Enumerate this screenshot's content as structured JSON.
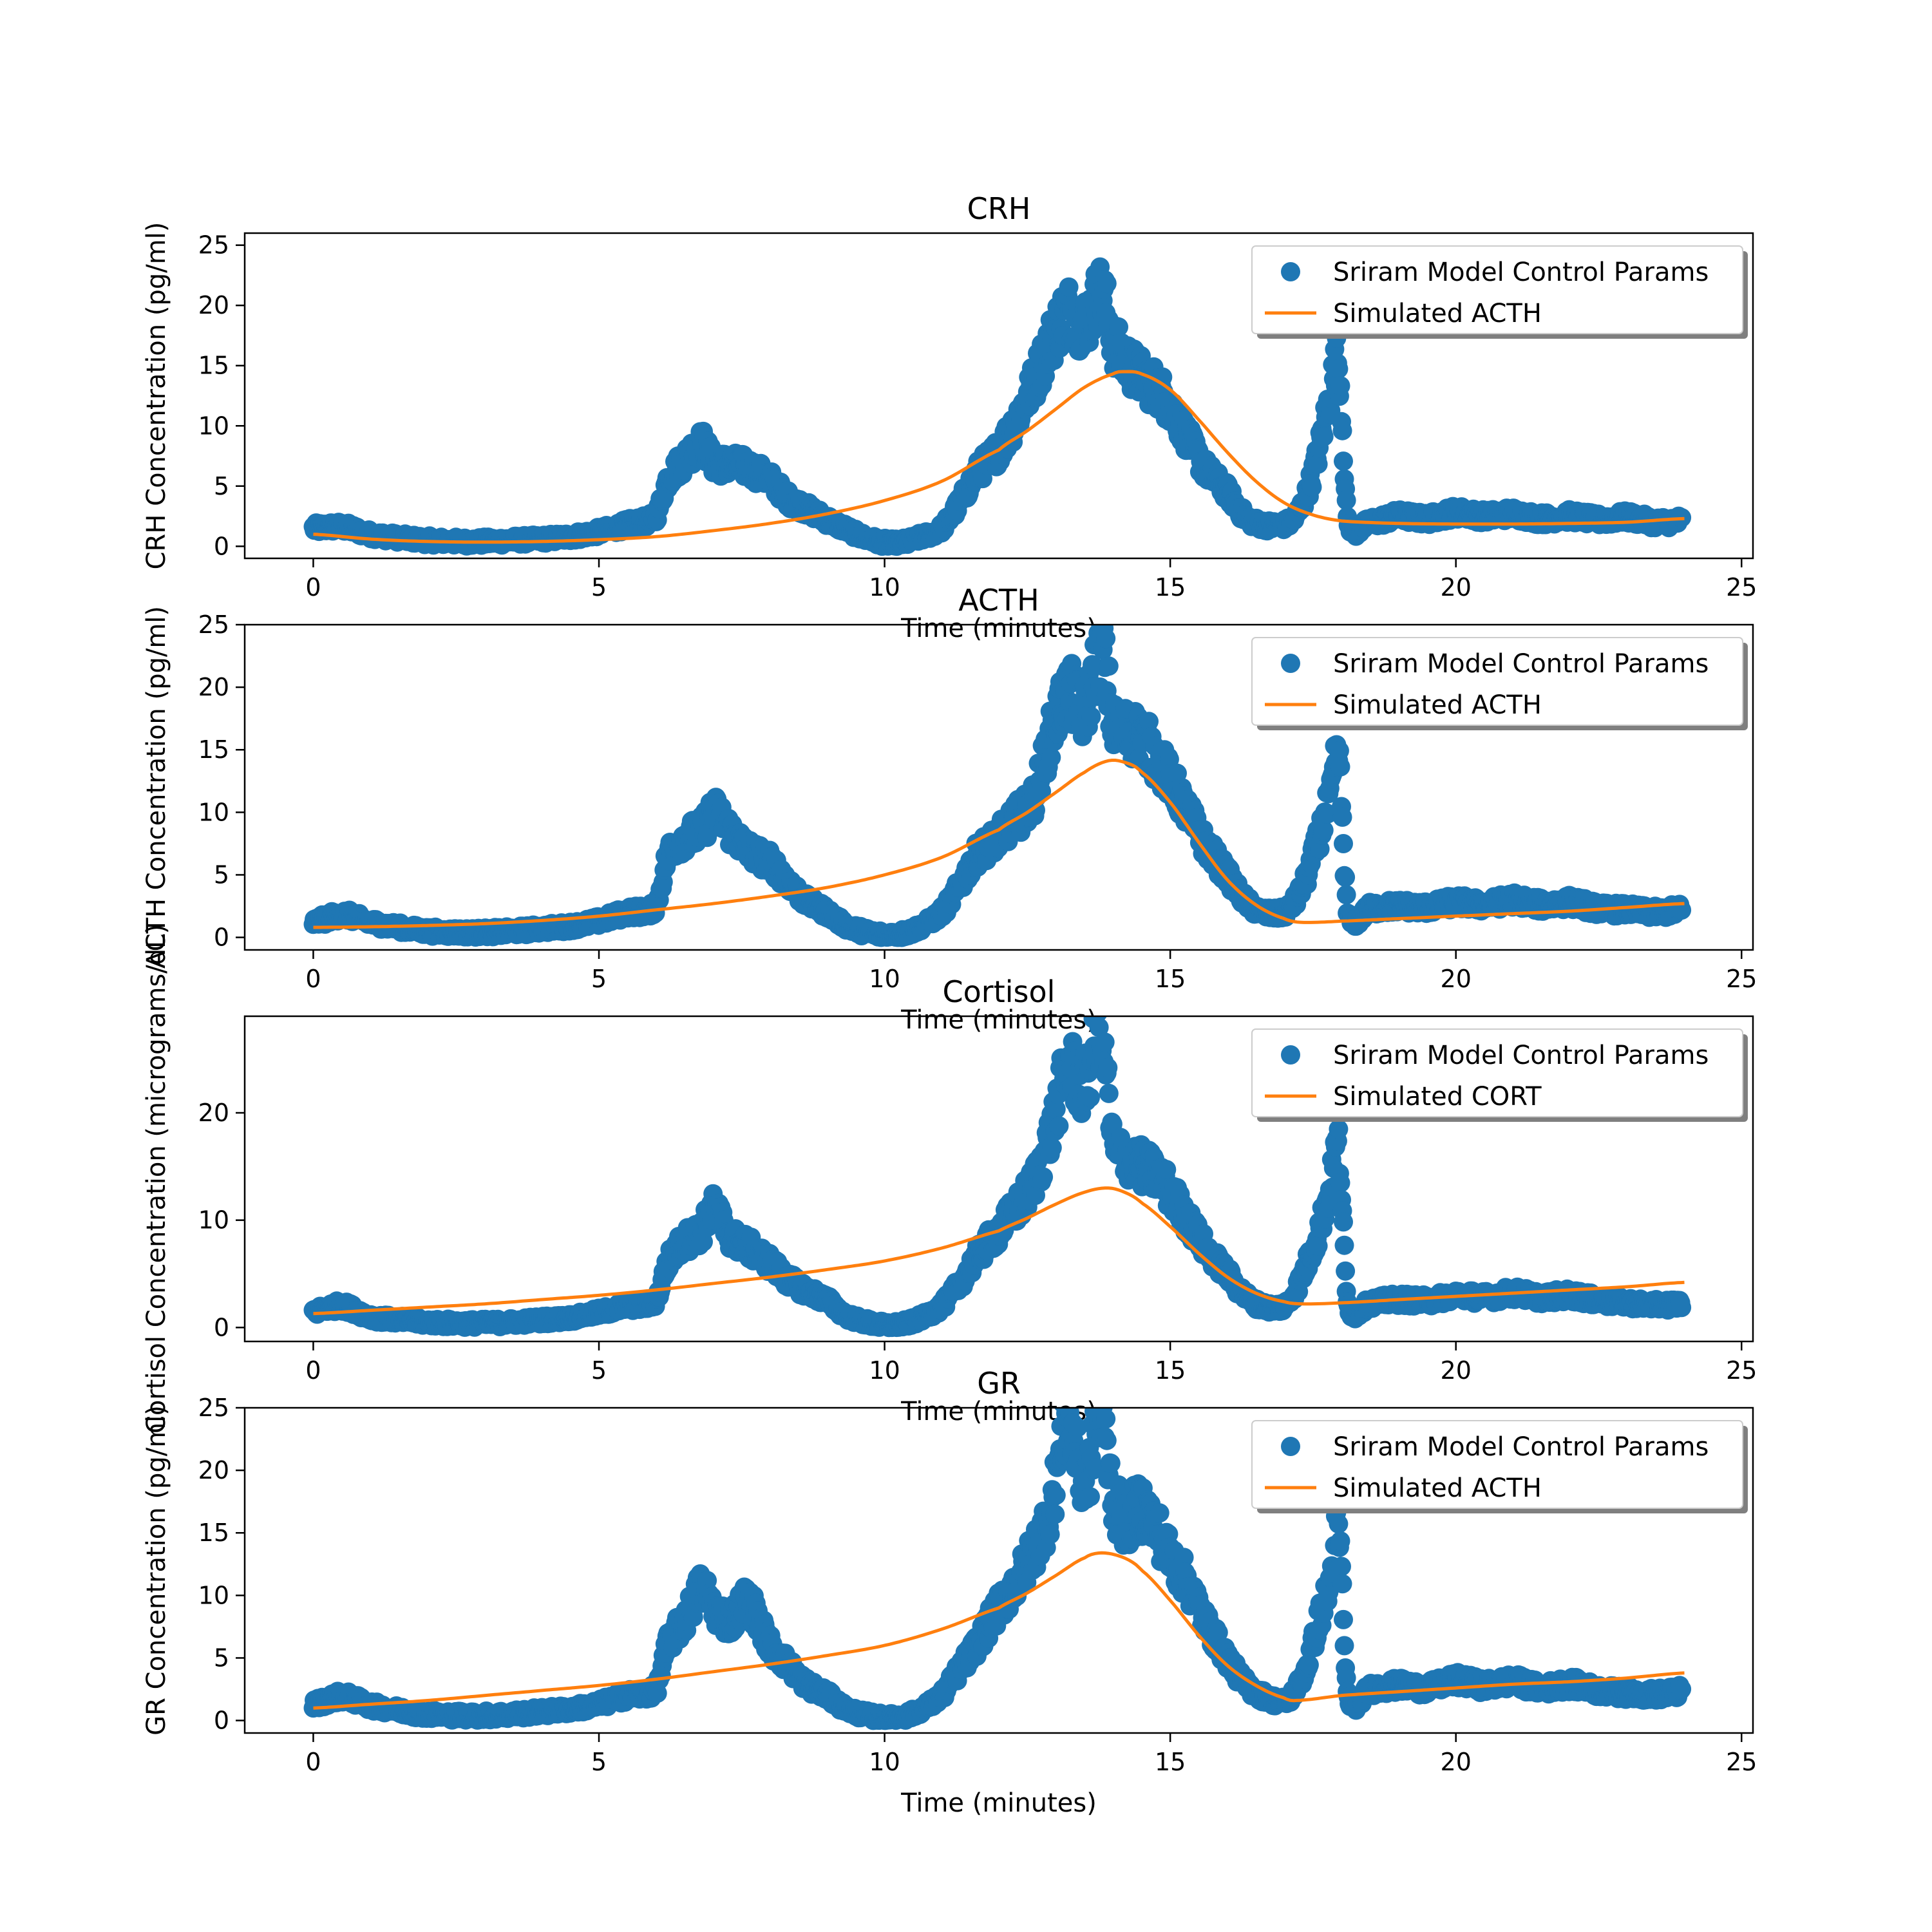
{
  "figure": {
    "colors": {
      "scatter": "#1f77b4",
      "line": "#ff7f0e",
      "axis": "#000000",
      "legend_border": "#cccccc",
      "legend_shadow": "#7f7f7f"
    }
  },
  "chart_data": [
    {
      "type": "scatter",
      "title": "CRH",
      "xlabel": "Time (minutes)",
      "ylabel": "CRH Concentration (pg/ml)",
      "xlim": [
        -1.2,
        25.2
      ],
      "ylim": [
        -1.0,
        26.0
      ],
      "xticks": [
        "0",
        "5",
        "10",
        "15",
        "20",
        "25"
      ],
      "xtick_values": [
        0,
        5,
        10,
        15,
        20,
        25
      ],
      "yticks": [
        "0",
        "5",
        "10",
        "15",
        "20",
        "25"
      ],
      "ytick_values": [
        0,
        5,
        10,
        15,
        20,
        25
      ],
      "grid": false,
      "legend": {
        "position": "upper right",
        "entries": [
          "Sriram Model Control Params",
          "Simulated ACTH"
        ]
      },
      "series": [
        {
          "name": "Sriram Model Control Params",
          "kind": "scatter",
          "color": "#1f77b4",
          "x": [
            0.0,
            0.5,
            1.0,
            1.5,
            2.0,
            2.5,
            3.0,
            3.5,
            4.0,
            4.5,
            5.0,
            5.5,
            6.0,
            6.2,
            6.5,
            6.8,
            7.0,
            7.3,
            7.6,
            8.0,
            8.3,
            8.6,
            9.0,
            9.3,
            9.6,
            10.0,
            10.3,
            10.6,
            11.0,
            11.3,
            11.6,
            12.0,
            12.3,
            12.6,
            12.9,
            13.2,
            13.5,
            13.8,
            14.0,
            14.2,
            14.5,
            14.8,
            15.0,
            15.3,
            15.6,
            16.0,
            16.3,
            16.6,
            17.0,
            17.2,
            17.4,
            17.6,
            17.8,
            17.95,
            18.1,
            18.5,
            19.0,
            19.5,
            20.0,
            20.5,
            21.0,
            21.5,
            22.0,
            22.5,
            23.0,
            23.5,
            23.95
          ],
          "y": [
            1.5,
            1.6,
            1.0,
            0.7,
            0.5,
            0.4,
            0.4,
            0.5,
            0.6,
            0.8,
            1.2,
            1.8,
            2.5,
            5.5,
            7.2,
            8.5,
            7.0,
            6.8,
            6.5,
            5.5,
            4.0,
            3.2,
            2.2,
            1.5,
            0.8,
            0.3,
            0.3,
            0.7,
            1.5,
            3.5,
            6.0,
            8.0,
            10.5,
            13.5,
            17.0,
            19.5,
            18.5,
            21.0,
            17.0,
            15.5,
            14.0,
            13.0,
            11.5,
            9.0,
            6.5,
            4.5,
            2.5,
            1.8,
            1.8,
            2.5,
            4.5,
            8.0,
            12.5,
            15.0,
            2.2,
            2.0,
            2.5,
            2.3,
            2.8,
            2.5,
            2.7,
            2.3,
            2.5,
            2.2,
            2.4,
            2.0,
            2.1
          ]
        },
        {
          "name": "Simulated ACTH",
          "kind": "line",
          "color": "#ff7f0e",
          "x": [
            0,
            1,
            2,
            3,
            4,
            5,
            6,
            7,
            8,
            9,
            10,
            11,
            12,
            12.5,
            13,
            13.5,
            14,
            14.2,
            14.5,
            15,
            15.5,
            16,
            16.5,
            17,
            17.5,
            18,
            19,
            20,
            21,
            22,
            23,
            24
          ],
          "y": [
            1.0,
            0.6,
            0.4,
            0.35,
            0.4,
            0.55,
            0.8,
            1.3,
            1.9,
            2.7,
            3.8,
            5.4,
            8.0,
            9.6,
            11.4,
            13.2,
            14.3,
            14.5,
            14.3,
            13.0,
            10.5,
            7.8,
            5.4,
            3.6,
            2.6,
            2.1,
            1.9,
            1.85,
            1.85,
            1.9,
            2.0,
            2.3
          ]
        }
      ]
    },
    {
      "type": "scatter",
      "title": "ACTH",
      "xlabel": "Time (minutes)",
      "ylabel": "ACTH Concentration (pg/ml)",
      "xlim": [
        -1.2,
        25.2
      ],
      "ylim": [
        -1.0,
        25.0
      ],
      "xticks": [
        "0",
        "5",
        "10",
        "15",
        "20",
        "25"
      ],
      "xtick_values": [
        0,
        5,
        10,
        15,
        20,
        25
      ],
      "yticks": [
        "0",
        "5",
        "10",
        "15",
        "20",
        "25"
      ],
      "ytick_values": [
        0,
        5,
        10,
        15,
        20,
        25
      ],
      "grid": false,
      "legend": {
        "position": "upper right",
        "entries": [
          "Sriram Model Control Params",
          "Simulated ACTH"
        ]
      },
      "series": [
        {
          "name": "Sriram Model Control Params",
          "kind": "scatter",
          "color": "#1f77b4",
          "x": [
            0.0,
            0.5,
            1.0,
            1.5,
            2.0,
            2.5,
            3.0,
            3.5,
            4.0,
            4.5,
            5.0,
            5.5,
            6.0,
            6.2,
            6.5,
            6.8,
            7.0,
            7.3,
            7.6,
            8.0,
            8.3,
            8.6,
            9.0,
            9.3,
            9.6,
            10.0,
            10.3,
            10.6,
            11.0,
            11.3,
            11.6,
            12.0,
            12.3,
            12.6,
            12.9,
            13.2,
            13.5,
            13.8,
            14.0,
            14.2,
            14.5,
            14.8,
            15.0,
            15.3,
            15.6,
            16.0,
            16.3,
            16.6,
            17.0,
            17.2,
            17.4,
            17.6,
            17.8,
            17.95,
            18.1,
            18.5,
            19.0,
            19.5,
            20.0,
            20.5,
            21.0,
            21.5,
            22.0,
            22.5,
            23.0,
            23.5,
            23.95
          ],
          "y": [
            1.2,
            1.8,
            1.2,
            0.8,
            0.5,
            0.4,
            0.4,
            0.5,
            0.7,
            0.9,
            1.3,
            2.0,
            2.5,
            6.5,
            8.0,
            8.5,
            10.0,
            8.5,
            7.0,
            6.0,
            4.5,
            3.0,
            2.0,
            1.0,
            0.5,
            0.2,
            0.3,
            0.8,
            2.0,
            4.0,
            6.5,
            8.0,
            9.5,
            11.0,
            16.0,
            19.5,
            18.0,
            23.0,
            17.0,
            16.5,
            16.0,
            14.0,
            12.5,
            10.0,
            7.5,
            5.0,
            3.0,
            2.0,
            2.0,
            3.0,
            5.0,
            8.0,
            11.0,
            14.0,
            2.0,
            2.3,
            2.5,
            2.4,
            2.8,
            2.6,
            3.0,
            2.6,
            2.8,
            2.3,
            2.2,
            2.0,
            2.2
          ]
        },
        {
          "name": "Simulated ACTH",
          "kind": "line",
          "color": "#ff7f0e",
          "x": [
            0,
            1,
            2,
            3,
            4,
            5,
            6,
            7,
            8,
            9,
            10,
            11,
            12,
            12.5,
            13,
            13.5,
            13.9,
            14.2,
            14.5,
            15,
            15.5,
            16,
            16.5,
            17,
            17.3,
            18,
            19,
            20,
            21,
            22,
            23,
            24
          ],
          "y": [
            0.8,
            0.85,
            0.95,
            1.1,
            1.35,
            1.7,
            2.2,
            2.7,
            3.3,
            4.0,
            5.0,
            6.4,
            8.6,
            10.0,
            11.6,
            13.2,
            14.1,
            14.0,
            13.2,
            10.8,
            7.6,
            4.6,
            2.6,
            1.5,
            1.2,
            1.3,
            1.5,
            1.7,
            1.9,
            2.1,
            2.4,
            2.7
          ]
        }
      ]
    },
    {
      "type": "scatter",
      "title": "Cortisol",
      "xlabel": "Time (minutes)",
      "ylabel": "Cortisol Concentration (micrograms/dL)",
      "xlim": [
        -1.2,
        25.2
      ],
      "ylim": [
        -1.3,
        29.0
      ],
      "xticks": [
        "0",
        "5",
        "10",
        "15",
        "20",
        "25"
      ],
      "xtick_values": [
        0,
        5,
        10,
        15,
        20,
        25
      ],
      "yticks": [
        "0",
        "10",
        "20"
      ],
      "ytick_values": [
        0,
        10,
        20
      ],
      "grid": false,
      "legend": {
        "position": "upper right",
        "entries": [
          "Sriram Model Control Params",
          "Simulated CORT"
        ]
      },
      "series": [
        {
          "name": "Sriram Model Control Params",
          "kind": "scatter",
          "color": "#1f77b4",
          "x": [
            0.0,
            0.5,
            1.0,
            1.5,
            2.0,
            2.5,
            3.0,
            3.5,
            4.0,
            4.5,
            5.0,
            5.5,
            6.0,
            6.2,
            6.5,
            6.8,
            7.0,
            7.3,
            7.6,
            8.0,
            8.3,
            8.6,
            9.0,
            9.3,
            9.6,
            10.0,
            10.3,
            10.6,
            11.0,
            11.3,
            11.6,
            12.0,
            12.3,
            12.6,
            12.9,
            13.2,
            13.5,
            13.8,
            14.0,
            14.2,
            14.5,
            14.8,
            15.0,
            15.3,
            15.6,
            16.0,
            16.3,
            16.6,
            17.0,
            17.2,
            17.4,
            17.6,
            17.8,
            17.95,
            18.1,
            18.5,
            19.0,
            19.5,
            20.0,
            20.5,
            21.0,
            21.5,
            22.0,
            22.5,
            23.0,
            23.5,
            23.95
          ],
          "y": [
            1.5,
            2.0,
            1.0,
            0.7,
            0.5,
            0.4,
            0.4,
            0.5,
            0.7,
            0.9,
            1.4,
            2.0,
            2.5,
            6.0,
            8.0,
            9.0,
            11.0,
            8.5,
            7.5,
            6.0,
            4.5,
            3.5,
            2.5,
            1.2,
            0.6,
            0.2,
            0.3,
            0.8,
            2.0,
            4.0,
            6.5,
            9.0,
            11.0,
            13.5,
            18.0,
            24.0,
            22.5,
            27.5,
            17.0,
            16.0,
            15.0,
            14.0,
            12.5,
            10.0,
            7.5,
            5.0,
            3.0,
            2.0,
            2.0,
            3.5,
            6.0,
            9.0,
            13.0,
            16.5,
            2.2,
            2.3,
            2.6,
            2.5,
            3.0,
            2.8,
            3.2,
            2.8,
            3.0,
            2.5,
            2.3,
            2.1,
            2.2
          ]
        },
        {
          "name": "Simulated CORT",
          "kind": "line",
          "color": "#ff7f0e",
          "x": [
            0,
            1,
            2,
            3,
            4,
            5,
            6,
            7,
            8,
            9,
            10,
            11,
            12,
            12.5,
            13,
            13.5,
            13.9,
            14.2,
            14.5,
            15,
            15.5,
            16,
            16.5,
            17,
            17.3,
            18,
            19,
            20,
            21,
            22,
            23,
            24
          ],
          "y": [
            1.3,
            1.6,
            1.9,
            2.2,
            2.6,
            3.0,
            3.5,
            4.1,
            4.7,
            5.4,
            6.2,
            7.4,
            9.0,
            10.2,
            11.5,
            12.6,
            13.0,
            12.6,
            11.6,
            9.4,
            6.9,
            4.7,
            3.2,
            2.4,
            2.2,
            2.3,
            2.6,
            2.9,
            3.2,
            3.5,
            3.8,
            4.2
          ]
        }
      ]
    },
    {
      "type": "scatter",
      "title": "GR",
      "xlabel": "Time (minutes)",
      "ylabel": "GR Concentration (pg/ml)",
      "xlim": [
        -1.2,
        25.2
      ],
      "ylim": [
        -1.0,
        25.0
      ],
      "xticks": [
        "0",
        "5",
        "10",
        "15",
        "20",
        "25"
      ],
      "xtick_values": [
        0,
        5,
        10,
        15,
        20,
        25
      ],
      "yticks": [
        "0",
        "5",
        "10",
        "15",
        "20",
        "25"
      ],
      "ytick_values": [
        0,
        5,
        10,
        15,
        20,
        25
      ],
      "grid": false,
      "legend": {
        "position": "upper right",
        "entries": [
          "Sriram Model Control Params",
          "Simulated ACTH"
        ]
      },
      "series": [
        {
          "name": "Sriram Model Control Params",
          "kind": "scatter",
          "color": "#1f77b4",
          "x": [
            0.0,
            0.5,
            1.0,
            1.5,
            2.0,
            2.5,
            3.0,
            3.5,
            4.0,
            4.5,
            5.0,
            5.5,
            6.0,
            6.2,
            6.5,
            6.8,
            7.0,
            7.3,
            7.6,
            8.0,
            8.3,
            8.6,
            9.0,
            9.3,
            9.6,
            10.0,
            10.3,
            10.6,
            11.0,
            11.3,
            11.6,
            12.0,
            12.3,
            12.6,
            12.9,
            13.2,
            13.5,
            13.8,
            14.0,
            14.2,
            14.5,
            14.8,
            15.0,
            15.3,
            15.6,
            16.0,
            16.3,
            16.6,
            17.0,
            17.2,
            17.4,
            17.6,
            17.8,
            17.95,
            18.1,
            18.5,
            19.0,
            19.5,
            20.0,
            20.5,
            21.0,
            21.5,
            22.0,
            22.5,
            23.0,
            23.5,
            23.95
          ],
          "y": [
            1.3,
            1.9,
            1.2,
            0.8,
            0.5,
            0.4,
            0.4,
            0.5,
            0.7,
            0.9,
            1.3,
            2.0,
            2.5,
            6.0,
            8.0,
            10.5,
            9.0,
            8.0,
            9.5,
            6.0,
            4.5,
            3.0,
            2.0,
            1.0,
            0.5,
            0.2,
            0.3,
            0.8,
            2.0,
            4.0,
            6.0,
            9.0,
            11.0,
            13.5,
            17.0,
            23.5,
            19.0,
            24.0,
            18.0,
            16.0,
            17.0,
            15.0,
            13.0,
            11.0,
            8.0,
            5.0,
            3.0,
            2.0,
            1.5,
            2.5,
            4.5,
            8.0,
            11.0,
            15.0,
            2.0,
            2.5,
            2.8,
            2.6,
            3.2,
            2.8,
            3.1,
            2.6,
            2.9,
            2.4,
            2.2,
            2.1,
            2.3
          ]
        },
        {
          "name": "Simulated ACTH",
          "kind": "line",
          "color": "#ff7f0e",
          "x": [
            0,
            1,
            2,
            3,
            4,
            5,
            6,
            7,
            8,
            9,
            10,
            11,
            12,
            12.5,
            13,
            13.5,
            13.8,
            14.2,
            14.5,
            15,
            15.5,
            16,
            16.5,
            17,
            17.2,
            18,
            19,
            20,
            21,
            22,
            23,
            24
          ],
          "y": [
            1.0,
            1.3,
            1.6,
            2.0,
            2.4,
            2.8,
            3.3,
            3.9,
            4.5,
            5.2,
            6.0,
            7.3,
            9.0,
            10.2,
            11.6,
            13.0,
            13.4,
            13.0,
            12.0,
            9.6,
            6.8,
            4.4,
            2.8,
            1.8,
            1.6,
            2.0,
            2.3,
            2.6,
            2.9,
            3.1,
            3.4,
            3.8
          ]
        }
      ]
    }
  ]
}
